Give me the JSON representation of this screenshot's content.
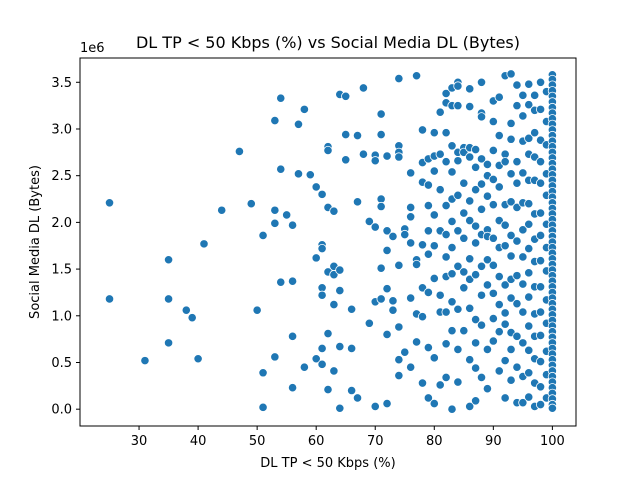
{
  "chart_data": {
    "type": "scatter",
    "title": "DL TP < 50 Kbps (%) vs Social Media DL (Bytes)",
    "xlabel": "DL TP < 50 Kbps (%)",
    "ylabel": "Social Media DL (Bytes)",
    "y_offset_label": "1e6",
    "xlim": [
      20,
      104
    ],
    "ylim": [
      -0.18,
      3.76
    ],
    "grid": false,
    "legend": "none",
    "marker_color": "#1f77b4",
    "marker_edge_color": "#ffffff",
    "x_ticks": [
      30,
      40,
      50,
      60,
      70,
      80,
      90,
      100
    ],
    "x_tick_labels": [
      "30",
      "40",
      "50",
      "60",
      "70",
      "80",
      "90",
      "100"
    ],
    "y_ticks": [
      0.0,
      0.5,
      1.0,
      1.5,
      2.0,
      2.5,
      3.0,
      3.5
    ],
    "y_tick_labels": [
      "0.0",
      "0.5",
      "1.0",
      "1.5",
      "2.0",
      "2.5",
      "3.0",
      "3.5"
    ],
    "points": [
      [
        25,
        2.21
      ],
      [
        25,
        1.18
      ],
      [
        31,
        0.52
      ],
      [
        35,
        1.6
      ],
      [
        35,
        1.18
      ],
      [
        35,
        0.71
      ],
      [
        38,
        1.06
      ],
      [
        39,
        0.98
      ],
      [
        40,
        0.54
      ],
      [
        41,
        1.77
      ],
      [
        44,
        2.13
      ],
      [
        47,
        2.76
      ],
      [
        49,
        2.2
      ],
      [
        50,
        1.06
      ],
      [
        51,
        1.86
      ],
      [
        51,
        0.39
      ],
      [
        51,
        0.02
      ],
      [
        53,
        2.13
      ],
      [
        53,
        1.99
      ],
      [
        53,
        0.56
      ],
      [
        53,
        3.09
      ],
      [
        54,
        3.33
      ],
      [
        54,
        2.57
      ],
      [
        54,
        1.36
      ],
      [
        55,
        2.08
      ],
      [
        56,
        1.97
      ],
      [
        56,
        1.37
      ],
      [
        56,
        0.78
      ],
      [
        56,
        0.23
      ],
      [
        57,
        3.05
      ],
      [
        57,
        2.52
      ],
      [
        58,
        3.21
      ],
      [
        58,
        0.45
      ],
      [
        59,
        2.51
      ],
      [
        60,
        2.38
      ],
      [
        60,
        1.62
      ],
      [
        60,
        0.54
      ],
      [
        61,
        2.3
      ],
      [
        61,
        1.76
      ],
      [
        61,
        1.72
      ],
      [
        61,
        1.3
      ],
      [
        61,
        1.22
      ],
      [
        61,
        0.65
      ],
      [
        61,
        0.48
      ],
      [
        62,
        2.81
      ],
      [
        62,
        2.77
      ],
      [
        62,
        2.16
      ],
      [
        62,
        1.47
      ],
      [
        62,
        0.81
      ],
      [
        62,
        0.21
      ],
      [
        63,
        2.12
      ],
      [
        63,
        1.53
      ],
      [
        63,
        1.44
      ],
      [
        63,
        1.12
      ],
      [
        63,
        0.41
      ],
      [
        64,
        3.37
      ],
      [
        64,
        1.49
      ],
      [
        64,
        1.27
      ],
      [
        64,
        0.67
      ],
      [
        64,
        0.01
      ],
      [
        65,
        3.35
      ],
      [
        65,
        2.94
      ],
      [
        65,
        2.67
      ],
      [
        66,
        1.07
      ],
      [
        66,
        0.65
      ],
      [
        66,
        0.2
      ],
      [
        67,
        2.93
      ],
      [
        67,
        2.22
      ],
      [
        67,
        0.12
      ],
      [
        68,
        3.44
      ],
      [
        68,
        2.73
      ],
      [
        69,
        2.01
      ],
      [
        69,
        0.92
      ],
      [
        70,
        2.72
      ],
      [
        70,
        2.66
      ],
      [
        70,
        1.95
      ],
      [
        70,
        1.15
      ],
      [
        70,
        0.03
      ],
      [
        71,
        3.16
      ],
      [
        71,
        2.94
      ],
      [
        71,
        2.25
      ],
      [
        71,
        2.17
      ],
      [
        71,
        1.51
      ],
      [
        71,
        1.18
      ],
      [
        72,
        2.71
      ],
      [
        72,
        1.91
      ],
      [
        72,
        1.7
      ],
      [
        72,
        1.29
      ],
      [
        72,
        0.8
      ],
      [
        72,
        0.06
      ],
      [
        73,
        1.85
      ],
      [
        73,
        1.16
      ],
      [
        73,
        1.06
      ],
      [
        74,
        3.54
      ],
      [
        74,
        2.82
      ],
      [
        74,
        2.75
      ],
      [
        74,
        2.7
      ],
      [
        74,
        1.54
      ],
      [
        74,
        0.88
      ],
      [
        74,
        0.53
      ],
      [
        74,
        0.36
      ],
      [
        75,
        1.93
      ],
      [
        75,
        1.87
      ],
      [
        75,
        0.61
      ],
      [
        76,
        2.53
      ],
      [
        76,
        2.16
      ],
      [
        76,
        2.06
      ],
      [
        76,
        1.78
      ],
      [
        76,
        1.19
      ],
      [
        76,
        0.45
      ],
      [
        77,
        3.57
      ],
      [
        77,
        1.6
      ],
      [
        77,
        1.55
      ],
      [
        77,
        1.02
      ],
      [
        77,
        0.72
      ],
      [
        78,
        2.99
      ],
      [
        78,
        2.64
      ],
      [
        78,
        2.43
      ],
      [
        78,
        1.76
      ],
      [
        78,
        1.3
      ],
      [
        78,
        0.99
      ],
      [
        78,
        0.28
      ],
      [
        79,
        2.68
      ],
      [
        79,
        2.4
      ],
      [
        79,
        2.18
      ],
      [
        79,
        1.91
      ],
      [
        79,
        1.66
      ],
      [
        79,
        1.25
      ],
      [
        79,
        0.12
      ],
      [
        79,
        0.66
      ],
      [
        80,
        2.96
      ],
      [
        80,
        2.71
      ],
      [
        80,
        2.55
      ],
      [
        80,
        2.08
      ],
      [
        80,
        1.75
      ],
      [
        80,
        1.4
      ],
      [
        80,
        0.55
      ],
      [
        80,
        0.06
      ],
      [
        81,
        3.18
      ],
      [
        81,
        2.73
      ],
      [
        81,
        2.35
      ],
      [
        81,
        1.91
      ],
      [
        81,
        1.22
      ],
      [
        81,
        1.04
      ],
      [
        81,
        0.26
      ],
      [
        82,
        3.38
      ],
      [
        82,
        3.28
      ],
      [
        82,
        2.96
      ],
      [
        82,
        2.65
      ],
      [
        82,
        2.18
      ],
      [
        82,
        1.87
      ],
      [
        82,
        1.63
      ],
      [
        82,
        1.42
      ],
      [
        82,
        1.04
      ],
      [
        82,
        0.7
      ],
      [
        82,
        0.34
      ],
      [
        83,
        3.44
      ],
      [
        83,
        3.25
      ],
      [
        83,
        2.82
      ],
      [
        83,
        2.54
      ],
      [
        83,
        2.25
      ],
      [
        83,
        2.01
      ],
      [
        83,
        1.73
      ],
      [
        83,
        1.45
      ],
      [
        83,
        1.15
      ],
      [
        83,
        0.84
      ],
      [
        83,
        0.0
      ],
      [
        84,
        3.5
      ],
      [
        84,
        3.46
      ],
      [
        84,
        3.25
      ],
      [
        84,
        2.75
      ],
      [
        84,
        2.66
      ],
      [
        84,
        2.29
      ],
      [
        84,
        1.91
      ],
      [
        84,
        1.53
      ],
      [
        84,
        1.07
      ],
      [
        84,
        0.64
      ],
      [
        84,
        0.29
      ],
      [
        85,
        2.8
      ],
      [
        85,
        2.75
      ],
      [
        85,
        2.42
      ],
      [
        85,
        2.1
      ],
      [
        85,
        1.83
      ],
      [
        85,
        1.47
      ],
      [
        85,
        1.3
      ],
      [
        85,
        0.84
      ],
      [
        86,
        3.43
      ],
      [
        86,
        3.24
      ],
      [
        86,
        2.8
      ],
      [
        86,
        2.7
      ],
      [
        86,
        2.23
      ],
      [
        86,
        2.02
      ],
      [
        86,
        1.61
      ],
      [
        86,
        1.39
      ],
      [
        86,
        1.08
      ],
      [
        86,
        0.53
      ],
      [
        86,
        0.03
      ],
      [
        87,
        2.78
      ],
      [
        87,
        2.59
      ],
      [
        87,
        2.35
      ],
      [
        87,
        1.96
      ],
      [
        87,
        1.78
      ],
      [
        87,
        1.44
      ],
      [
        87,
        0.96
      ],
      [
        87,
        0.71
      ],
      [
        87,
        0.44
      ],
      [
        87,
        0.09
      ],
      [
        88,
        3.5
      ],
      [
        88,
        3.17
      ],
      [
        88,
        3.13
      ],
      [
        88,
        2.68
      ],
      [
        88,
        2.41
      ],
      [
        88,
        2.14
      ],
      [
        88,
        1.87
      ],
      [
        88,
        1.53
      ],
      [
        88,
        1.22
      ],
      [
        88,
        0.9
      ],
      [
        88,
        0.34
      ],
      [
        89,
        2.62
      ],
      [
        89,
        2.5
      ],
      [
        89,
        2.28
      ],
      [
        89,
        1.92
      ],
      [
        89,
        1.85
      ],
      [
        89,
        1.6
      ],
      [
        89,
        1.33
      ],
      [
        89,
        0.64
      ],
      [
        89,
        0.22
      ],
      [
        90,
        3.3
      ],
      [
        90,
        3.08
      ],
      [
        90,
        2.77
      ],
      [
        90,
        2.46
      ],
      [
        90,
        2.19
      ],
      [
        90,
        1.83
      ],
      [
        90,
        1.54
      ],
      [
        90,
        1.24
      ],
      [
        90,
        0.97
      ],
      [
        90,
        0.73
      ],
      [
        91,
        3.34
      ],
      [
        91,
        2.93
      ],
      [
        91,
        2.61
      ],
      [
        91,
        2.38
      ],
      [
        91,
        2.02
      ],
      [
        91,
        1.73
      ],
      [
        91,
        1.42
      ],
      [
        91,
        1.12
      ],
      [
        91,
        0.83
      ],
      [
        91,
        0.41
      ],
      [
        92,
        3.57
      ],
      [
        92,
        2.73
      ],
      [
        92,
        2.65
      ],
      [
        92,
        2.19
      ],
      [
        92,
        1.97
      ],
      [
        92,
        1.75
      ],
      [
        92,
        1.33
      ],
      [
        92,
        1.03
      ],
      [
        92,
        0.91
      ],
      [
        92,
        0.52
      ],
      [
        92,
        0.12
      ],
      [
        93,
        3.59
      ],
      [
        93,
        3.06
      ],
      [
        93,
        2.89
      ],
      [
        93,
        2.52
      ],
      [
        93,
        2.22
      ],
      [
        93,
        1.86
      ],
      [
        93,
        1.64
      ],
      [
        93,
        1.39
      ],
      [
        93,
        1.19
      ],
      [
        93,
        0.82
      ],
      [
        93,
        0.64
      ],
      [
        93,
        0.31
      ],
      [
        94,
        3.47
      ],
      [
        94,
        3.25
      ],
      [
        94,
        2.65
      ],
      [
        94,
        2.42
      ],
      [
        94,
        2.16
      ],
      [
        94,
        1.8
      ],
      [
        94,
        1.43
      ],
      [
        94,
        1.13
      ],
      [
        94,
        0.78
      ],
      [
        94,
        0.45
      ],
      [
        94,
        0.07
      ],
      [
        95,
        3.36
      ],
      [
        95,
        3.14
      ],
      [
        95,
        2.87
      ],
      [
        95,
        2.53
      ],
      [
        95,
        2.21
      ],
      [
        95,
        1.92
      ],
      [
        95,
        1.63
      ],
      [
        95,
        1.34
      ],
      [
        95,
        1.04
      ],
      [
        95,
        0.71
      ],
      [
        95,
        0.35
      ],
      [
        95,
        0.07
      ],
      [
        96,
        3.48
      ],
      [
        96,
        3.26
      ],
      [
        96,
        2.9
      ],
      [
        96,
        2.73
      ],
      [
        96,
        2.45
      ],
      [
        96,
        2.2
      ],
      [
        96,
        1.98
      ],
      [
        96,
        1.72
      ],
      [
        96,
        1.46
      ],
      [
        96,
        1.2
      ],
      [
        96,
        0.89
      ],
      [
        96,
        0.63
      ],
      [
        96,
        0.39
      ],
      [
        96,
        0.13
      ],
      [
        97,
        3.36
      ],
      [
        97,
        3.2
      ],
      [
        97,
        2.96
      ],
      [
        97,
        2.7
      ],
      [
        97,
        2.45
      ],
      [
        97,
        2.09
      ],
      [
        97,
        1.82
      ],
      [
        97,
        1.58
      ],
      [
        97,
        1.31
      ],
      [
        97,
        1.02
      ],
      [
        97,
        0.78
      ],
      [
        97,
        0.54
      ],
      [
        97,
        0.28
      ],
      [
        97,
        0.03
      ],
      [
        98,
        3.5
      ],
      [
        98,
        3.21
      ],
      [
        98,
        2.88
      ],
      [
        98,
        2.65
      ],
      [
        98,
        2.42
      ],
      [
        98,
        2.1
      ],
      [
        98,
        1.86
      ],
      [
        98,
        1.59
      ],
      [
        98,
        1.31
      ],
      [
        98,
        1.04
      ],
      [
        98,
        0.79
      ],
      [
        98,
        0.51
      ],
      [
        98,
        0.24
      ],
      [
        98,
        0.05
      ],
      [
        99,
        3.4
      ],
      [
        99,
        3.08
      ],
      [
        99,
        2.83
      ],
      [
        99,
        2.52
      ],
      [
        99,
        2.29
      ],
      [
        99,
        1.98
      ],
      [
        99,
        1.73
      ],
      [
        99,
        1.48
      ],
      [
        99,
        1.17
      ],
      [
        99,
        0.92
      ],
      [
        99,
        0.62
      ],
      [
        99,
        0.37
      ],
      [
        99,
        0.12
      ],
      [
        100,
        3.58
      ],
      [
        100,
        3.53
      ],
      [
        100,
        3.47
      ],
      [
        100,
        3.41
      ],
      [
        100,
        3.35
      ],
      [
        100,
        3.29
      ],
      [
        100,
        3.23
      ],
      [
        100,
        3.17
      ],
      [
        100,
        3.11
      ],
      [
        100,
        3.05
      ],
      [
        100,
        2.99
      ],
      [
        100,
        2.93
      ],
      [
        100,
        2.87
      ],
      [
        100,
        2.81
      ],
      [
        100,
        2.75
      ],
      [
        100,
        2.69
      ],
      [
        100,
        2.63
      ],
      [
        100,
        2.57
      ],
      [
        100,
        2.51
      ],
      [
        100,
        2.45
      ],
      [
        100,
        2.39
      ],
      [
        100,
        2.33
      ],
      [
        100,
        2.27
      ],
      [
        100,
        2.21
      ],
      [
        100,
        2.15
      ],
      [
        100,
        2.09
      ],
      [
        100,
        2.03
      ],
      [
        100,
        1.97
      ],
      [
        100,
        1.91
      ],
      [
        100,
        1.85
      ],
      [
        100,
        1.79
      ],
      [
        100,
        1.73
      ],
      [
        100,
        1.67
      ],
      [
        100,
        1.61
      ],
      [
        100,
        1.55
      ],
      [
        100,
        1.49
      ],
      [
        100,
        1.43
      ],
      [
        100,
        1.37
      ],
      [
        100,
        1.31
      ],
      [
        100,
        1.25
      ],
      [
        100,
        1.19
      ],
      [
        100,
        1.13
      ],
      [
        100,
        1.07
      ],
      [
        100,
        1.01
      ],
      [
        100,
        0.95
      ],
      [
        100,
        0.89
      ],
      [
        100,
        0.83
      ],
      [
        100,
        0.77
      ],
      [
        100,
        0.71
      ],
      [
        100,
        0.65
      ],
      [
        100,
        0.59
      ],
      [
        100,
        0.53
      ],
      [
        100,
        0.47
      ],
      [
        100,
        0.41
      ],
      [
        100,
        0.35
      ],
      [
        100,
        0.29
      ],
      [
        100,
        0.23
      ],
      [
        100,
        0.17
      ],
      [
        100,
        0.11
      ],
      [
        100,
        0.05
      ],
      [
        100,
        0.01
      ]
    ]
  }
}
